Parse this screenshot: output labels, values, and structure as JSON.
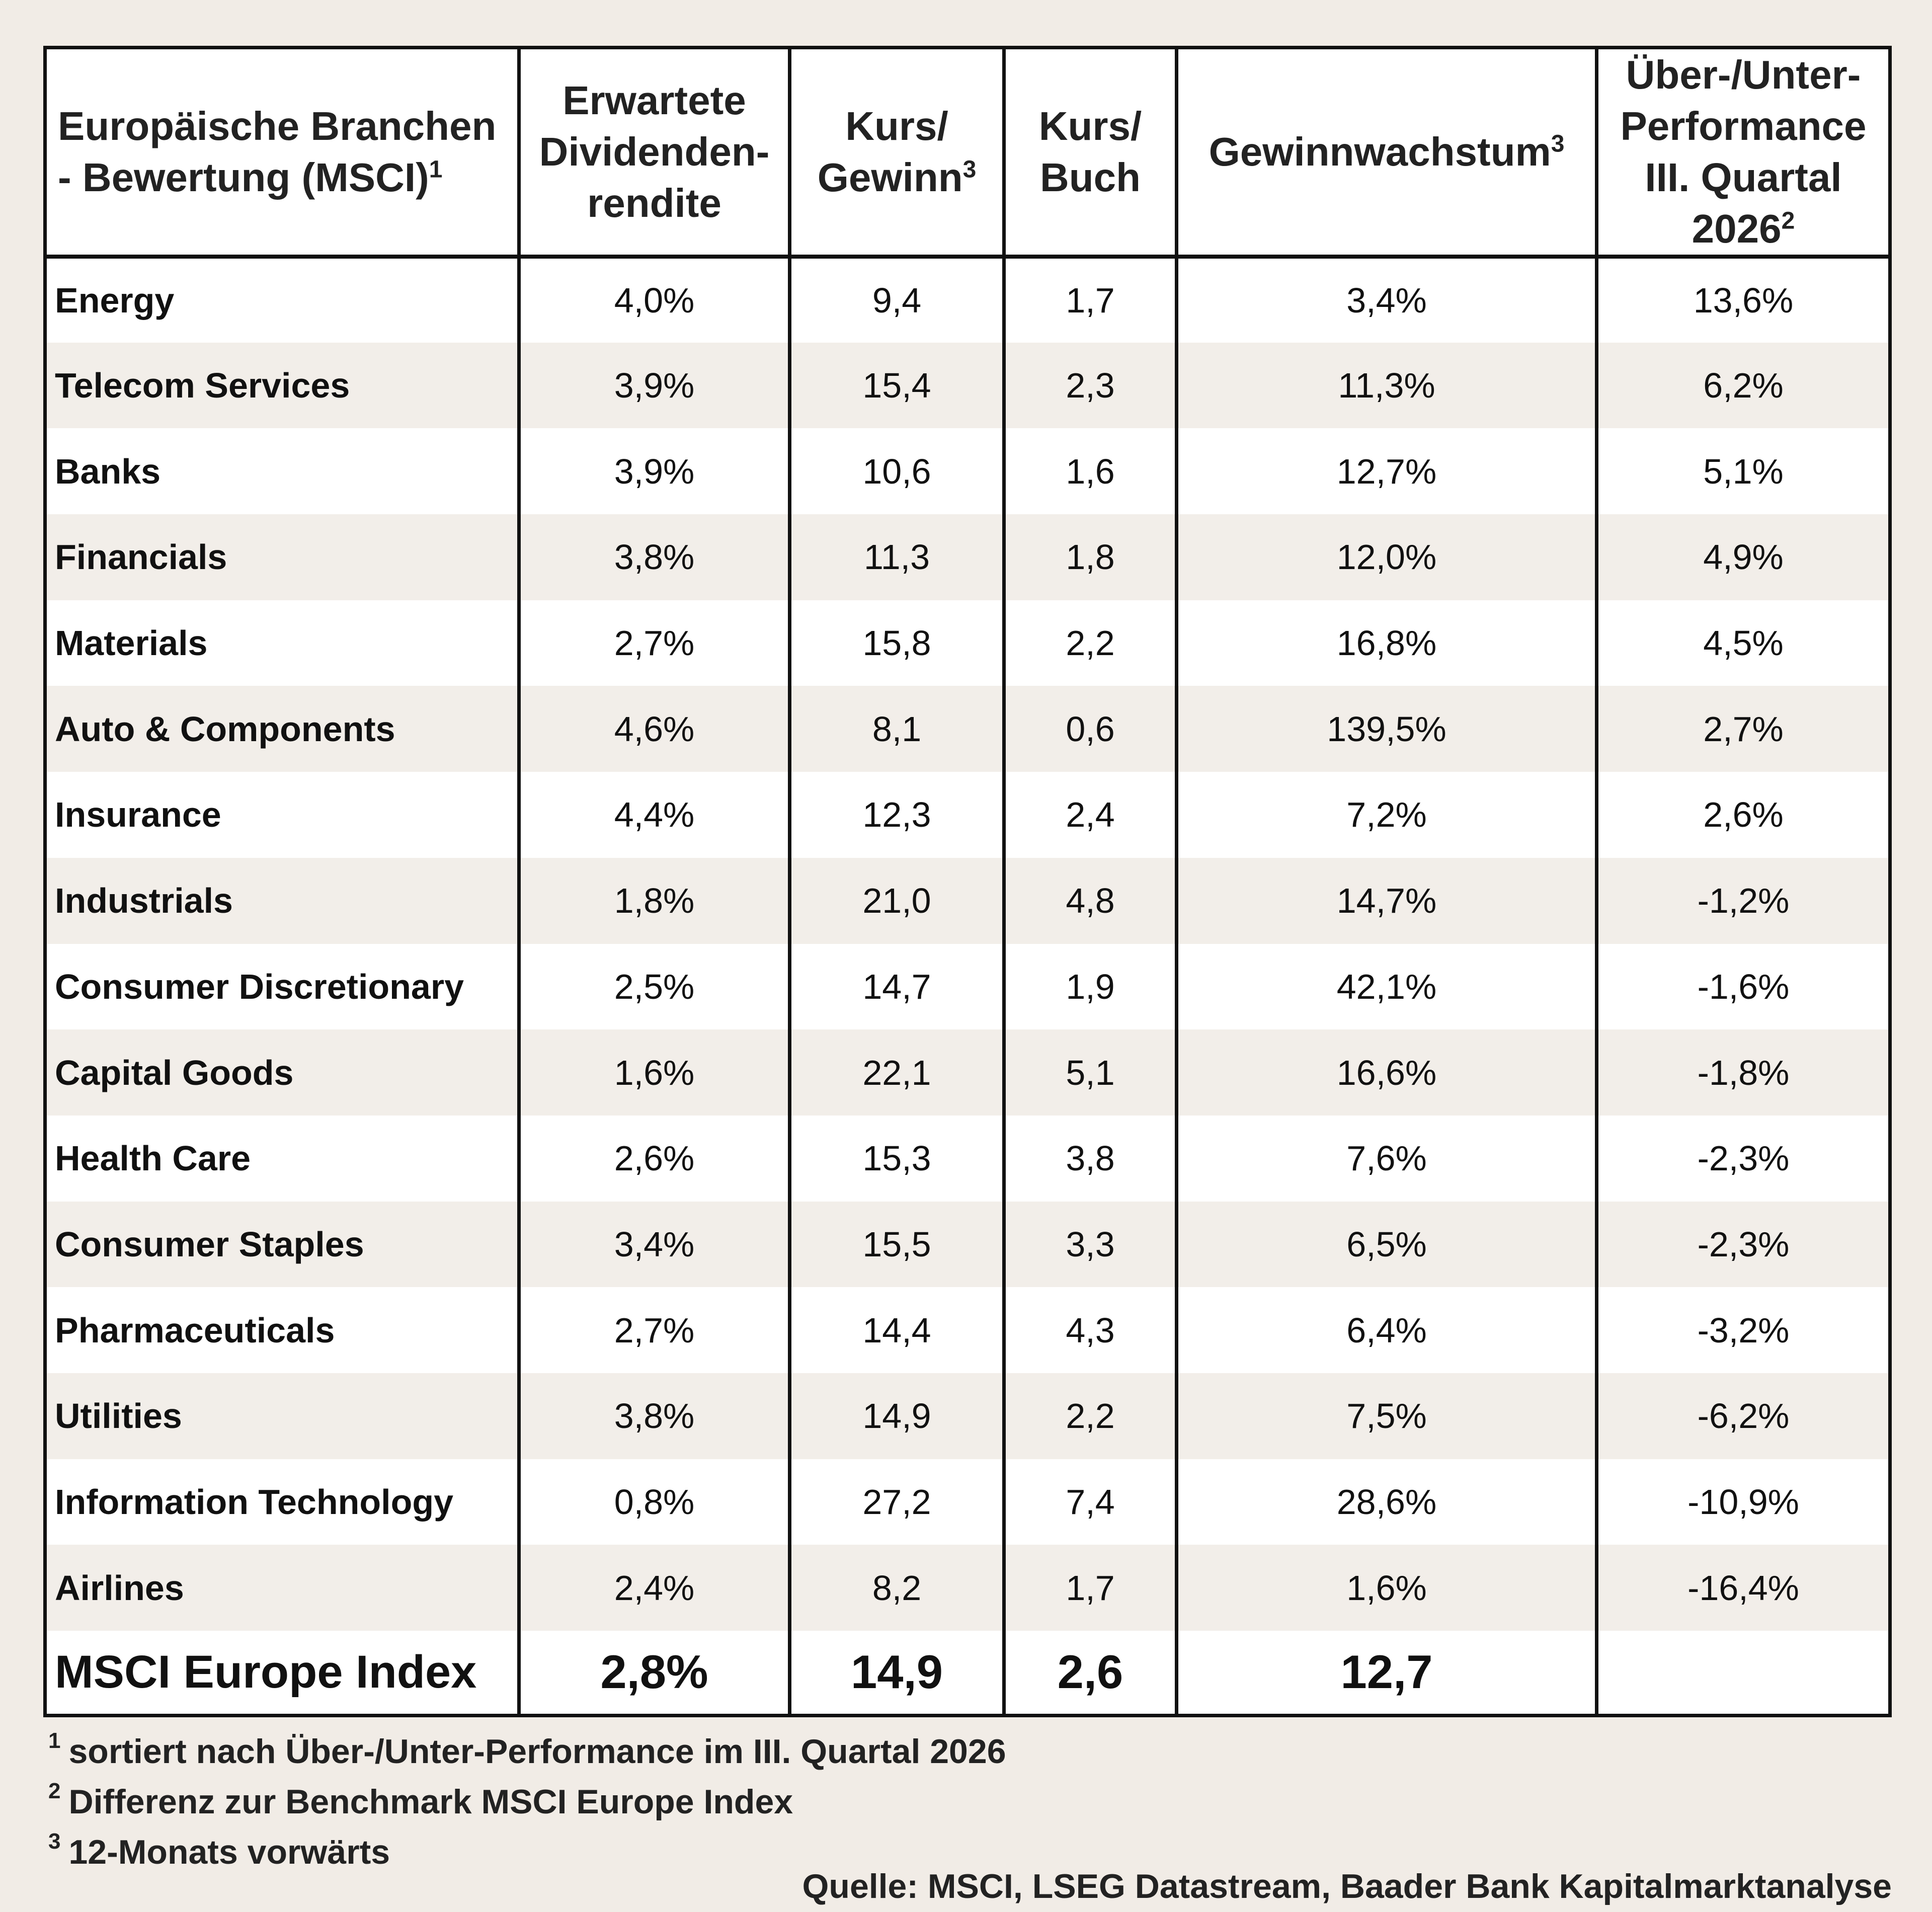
{
  "chart_data": {
    "type": "table",
    "columns": [
      {
        "label": "Europäische Branchen - Bewertung (MSCI)",
        "note": "1"
      },
      {
        "label": "Erwartete Dividenden-rendite",
        "note": ""
      },
      {
        "label": "Kurs/ Gewinn",
        "note": "3"
      },
      {
        "label": "Kurs/ Buch",
        "note": ""
      },
      {
        "label": "Gewinnwachstum",
        "note": "3"
      },
      {
        "label": "Über-/Unter-Performance III. Quartal 2026",
        "note": "2"
      }
    ],
    "rows": [
      [
        "Energy",
        "4,0%",
        "9,4",
        "1,7",
        "3,4%",
        "13,6%"
      ],
      [
        "Telecom Services",
        "3,9%",
        "15,4",
        "2,3",
        "11,3%",
        "6,2%"
      ],
      [
        "Banks",
        "3,9%",
        "10,6",
        "1,6",
        "12,7%",
        "5,1%"
      ],
      [
        "Financials",
        "3,8%",
        "11,3",
        "1,8",
        "12,0%",
        "4,9%"
      ],
      [
        "Materials",
        "2,7%",
        "15,8",
        "2,2",
        "16,8%",
        "4,5%"
      ],
      [
        "Auto & Components",
        "4,6%",
        "8,1",
        "0,6",
        "139,5%",
        "2,7%"
      ],
      [
        "Insurance",
        "4,4%",
        "12,3",
        "2,4",
        "7,2%",
        "2,6%"
      ],
      [
        "Industrials",
        "1,8%",
        "21,0",
        "4,8",
        "14,7%",
        "-1,2%"
      ],
      [
        "Consumer Discretionary",
        "2,5%",
        "14,7",
        "1,9",
        "42,1%",
        "-1,6%"
      ],
      [
        "Capital Goods",
        "1,6%",
        "22,1",
        "5,1",
        "16,6%",
        "-1,8%"
      ],
      [
        "Health Care",
        "2,6%",
        "15,3",
        "3,8",
        "7,6%",
        "-2,3%"
      ],
      [
        "Consumer Staples",
        "3,4%",
        "15,5",
        "3,3",
        "6,5%",
        "-2,3%"
      ],
      [
        "Pharmaceuticals",
        "2,7%",
        "14,4",
        "4,3",
        "6,4%",
        "-3,2%"
      ],
      [
        "Utilities",
        "3,8%",
        "14,9",
        "2,2",
        "7,5%",
        "-6,2%"
      ],
      [
        "Information Technology",
        "0,8%",
        "27,2",
        "7,4",
        "28,6%",
        "-10,9%"
      ],
      [
        "Airlines",
        "2,4%",
        "8,2",
        "1,7",
        "1,6%",
        "-16,4%"
      ]
    ],
    "summary": [
      "MSCI Europe Index",
      "2,8%",
      "14,9",
      "2,6",
      "12,7",
      ""
    ]
  },
  "footnotes": [
    {
      "mark": "1",
      "text": "sortiert nach Über-/Unter-Performance im III. Quartal 2026"
    },
    {
      "mark": "2",
      "text": "Differenz zur Benchmark MSCI Europe Index"
    },
    {
      "mark": "3",
      "text": "12-Monats vorwärts"
    }
  ],
  "source": "Quelle: MSCI, LSEG Datastream, Baader Bank Kapitalmarktanalyse"
}
